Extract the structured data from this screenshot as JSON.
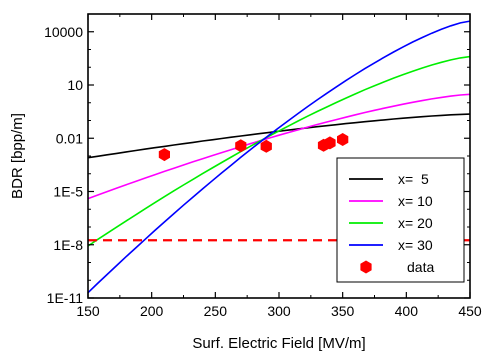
{
  "chart_data": {
    "type": "line",
    "xlabel": "Surf. Electric Field [MV/m]",
    "ylabel": "BDR [bpp/m]",
    "xlim": [
      150,
      450
    ],
    "ylim": [
      1e-11,
      100000
    ],
    "yscale": "log",
    "grid": false,
    "legend_position": "bottom-right",
    "x_ticks": [
      150,
      200,
      250,
      300,
      350,
      400,
      450
    ],
    "x_tick_labels": [
      "150",
      "200",
      "250",
      "300",
      "350",
      "400",
      "450"
    ],
    "y_ticks": [
      1e-11,
      1e-08,
      1e-05,
      0.01,
      10,
      10000
    ],
    "y_tick_labels": [
      "1E-11",
      "1E-8",
      "1E-5",
      "0.01",
      "10",
      "10000"
    ],
    "series": [
      {
        "name": "x=  5",
        "color": "#000000",
        "x": [
          150,
          450
        ],
        "y": [
          0.0008,
          0.23
        ]
      },
      {
        "name": "x= 10",
        "color": "#ff00ff",
        "x": [
          150,
          450
        ],
        "y": [
          4e-06,
          3
        ]
      },
      {
        "name": "x= 20",
        "color": "#00ee00",
        "x": [
          150,
          450
        ],
        "y": [
          8.5e-09,
          400
        ]
      },
      {
        "name": "x= 30",
        "color": "#0000ff",
        "x": [
          150,
          450
        ],
        "y": [
          2e-11,
          40000
        ]
      }
    ],
    "scatter": {
      "name": "data",
      "color": "#ff0000",
      "x": [
        210,
        270,
        290,
        335,
        340,
        350
      ],
      "y": [
        0.0012,
        0.0038,
        0.0035,
        0.004,
        0.0055,
        0.0085
      ]
    },
    "reference_line": {
      "y": 1.8e-08,
      "color": "#ff0000",
      "style": "dashed"
    }
  }
}
